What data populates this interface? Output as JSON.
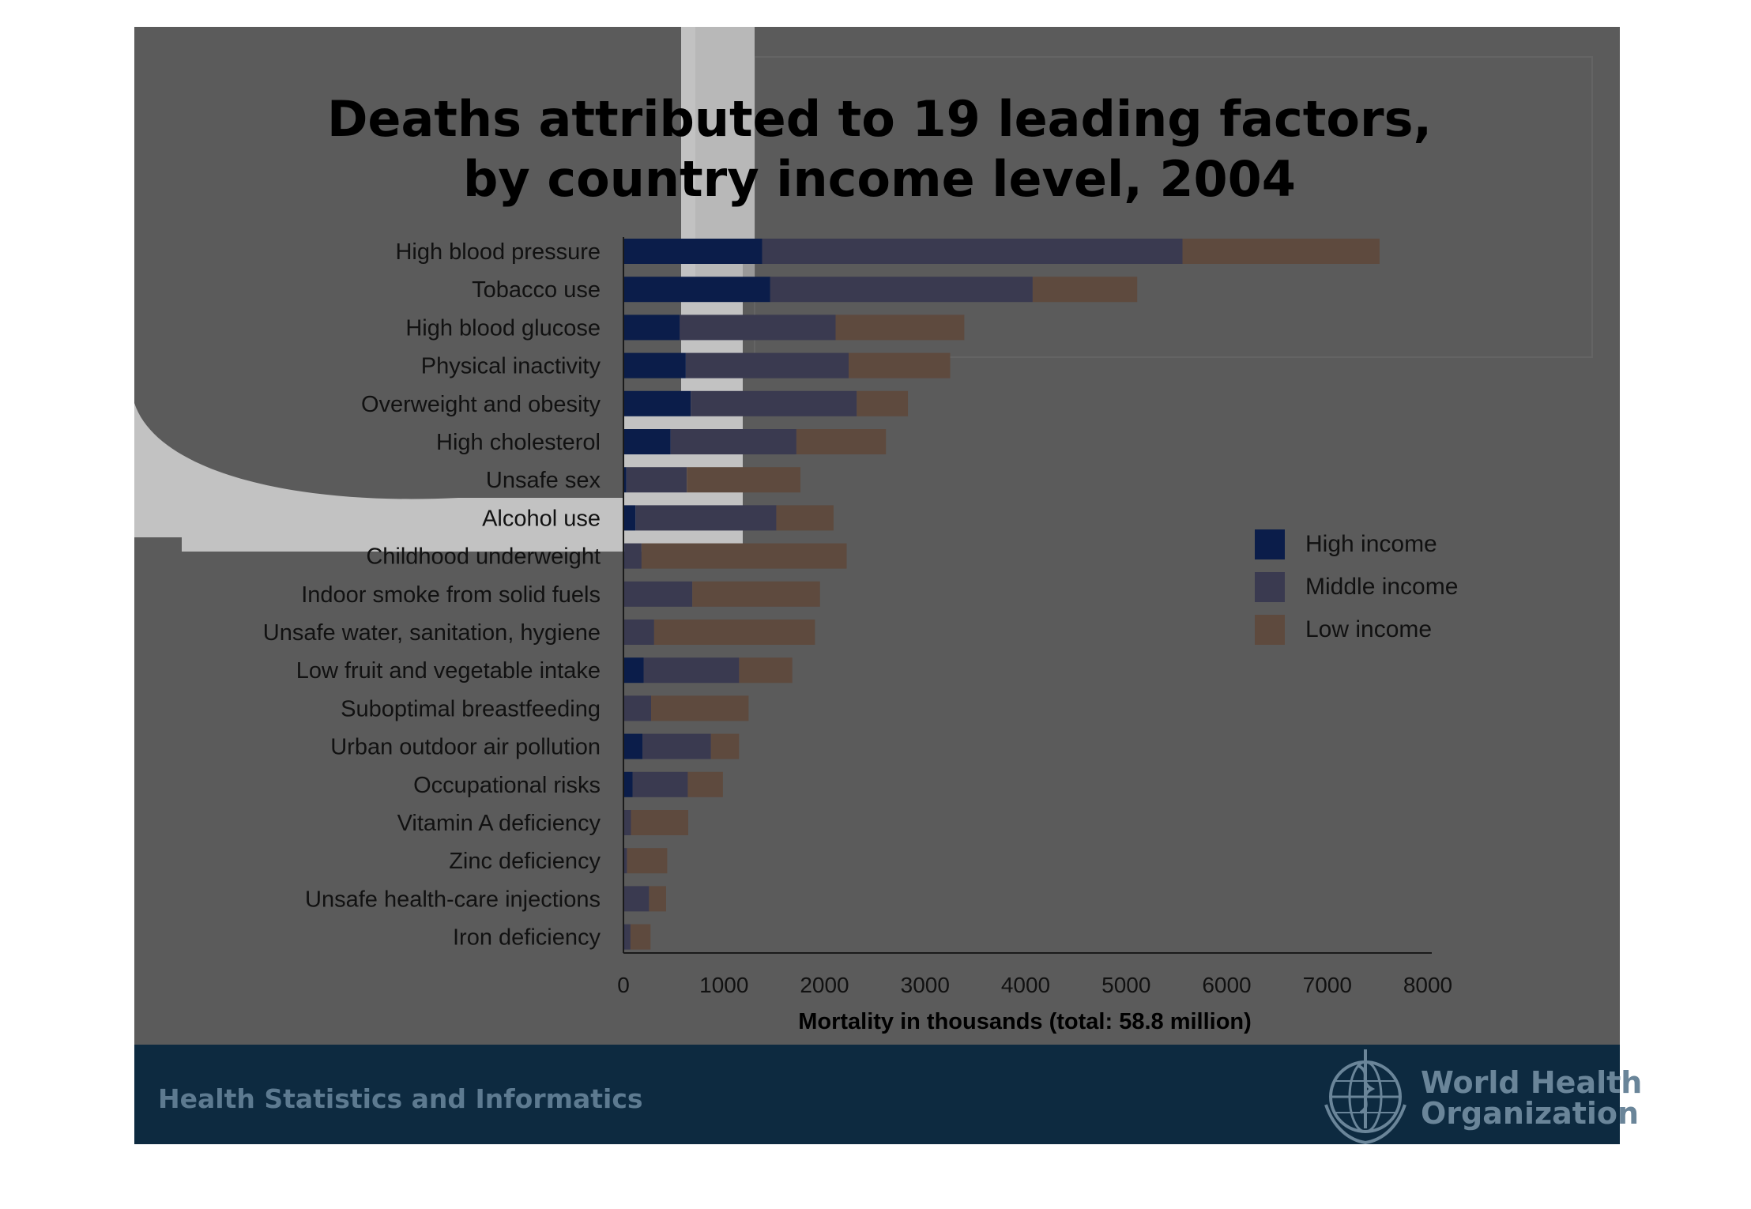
{
  "slide": {
    "footer_left": "Health Statistics and Informatics",
    "org_name_line1": "World Health",
    "org_name_line2": "Organization",
    "colors": {
      "background": "#5b5b5b",
      "footer_band": "#0d2a40",
      "white_shape": "#c2c2c2",
      "high_income": "#0b1d4a",
      "middle_income": "#3a3a50",
      "low_income": "#5e4a3e"
    }
  },
  "chart_data": {
    "type": "bar",
    "orientation": "horizontal",
    "stacked": true,
    "title_line1": "Deaths attributed to 19 leading factors,",
    "title_line2": "by country income level, 2004",
    "xlabel": "Mortality in thousands (total: 58.8 million)",
    "ylabel": "",
    "xlim": [
      0,
      8000
    ],
    "xticks": [
      0,
      1000,
      2000,
      3000,
      4000,
      5000,
      6000,
      7000,
      8000
    ],
    "grid": false,
    "legend_position": "right",
    "categories": [
      "High blood pressure",
      "Tobacco use",
      "High blood glucose",
      "Physical inactivity",
      "Overweight and obesity",
      "High cholesterol",
      "Unsafe sex",
      "Alcohol use",
      "Childhood underweight",
      "Indoor smoke from solid fuels",
      "Unsafe water, sanitation, hygiene",
      "Low fruit and vegetable intake",
      "Suboptimal breastfeeding",
      "Urban outdoor air pollution",
      "Occupational risks",
      "Vitamin A deficiency",
      "Zinc deficiency",
      "Unsafe health-care injections",
      "Iron deficiency"
    ],
    "series": [
      {
        "name": "High income",
        "color": "#0b1d4a",
        "values": [
          1380,
          1460,
          560,
          620,
          670,
          470,
          30,
          120,
          10,
          5,
          5,
          200,
          5,
          190,
          90,
          5,
          5,
          5,
          10
        ]
      },
      {
        "name": "Middle income",
        "color": "#3a3a50",
        "values": [
          4180,
          2610,
          1550,
          1620,
          1650,
          1250,
          600,
          1400,
          170,
          680,
          300,
          950,
          270,
          680,
          550,
          70,
          30,
          250,
          60
        ]
      },
      {
        "name": "Low income",
        "color": "#5e4a3e",
        "values": [
          1960,
          1040,
          1280,
          1010,
          510,
          890,
          1130,
          570,
          2040,
          1270,
          1600,
          530,
          970,
          280,
          350,
          570,
          400,
          170,
          200
        ]
      }
    ]
  }
}
